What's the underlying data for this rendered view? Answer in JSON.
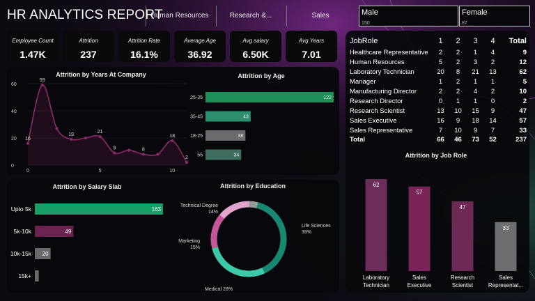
{
  "header": {
    "title": "HR ANALYTICS REPORT",
    "tabs": [
      "Human Resources",
      "Research &...",
      "Sales"
    ]
  },
  "gender": [
    {
      "label": "Male",
      "value": "150"
    },
    {
      "label": "Female",
      "value": "87"
    }
  ],
  "kpis": [
    {
      "label": "Employee Count",
      "value": "1.47K"
    },
    {
      "label": "Attrition",
      "value": "237"
    },
    {
      "label": "Attrition Rate",
      "value": "16.1%"
    },
    {
      "label": "Average Age",
      "value": "36.92"
    },
    {
      "label": "Avg salary",
      "value": "6.50K"
    },
    {
      "label": "Avg Years",
      "value": "7.01"
    }
  ],
  "colors": {
    "green": "#1f8f5a",
    "teal": "#2e8f6e",
    "gray": "#6b6b6b",
    "grayteal": "#3f6e5e",
    "plum": "#6b2450",
    "line": "#8d2a6a",
    "barGreen": "#16a068",
    "jobPlum": "#6b2d5a",
    "jobMag": "#7b2459",
    "jobPlum2": "#6e2a55",
    "jobGray": "#6f6f6f",
    "donutDark": "#17876f",
    "donutLight": "#3dc9a8",
    "donutPink": "#c4579a",
    "donutLightPink": "#e2a4cc",
    "donutGray": "#9a9a9a"
  },
  "chart_data": [
    {
      "type": "line",
      "title": "Attrition by Years At Company",
      "ylim": [
        0,
        60
      ],
      "yticks": [
        0,
        20,
        40,
        60
      ],
      "series": [
        {
          "name": "Attrition",
          "x": [
            0,
            1,
            2,
            3,
            4,
            5,
            6,
            7,
            8,
            9,
            10,
            11
          ],
          "values": [
            16,
            59,
            27,
            19,
            20,
            21,
            9,
            11,
            8,
            8,
            18,
            2
          ]
        }
      ],
      "labels": [
        {
          "x": 0,
          "text": "16"
        },
        {
          "x": 1,
          "text": "59"
        },
        {
          "x": 3,
          "text": "19"
        },
        {
          "x": 5,
          "text": "21"
        },
        {
          "x": 6,
          "text": "9"
        },
        {
          "x": 8,
          "text": "8"
        },
        {
          "x": 10,
          "text": "18"
        },
        {
          "x": 11,
          "text": "2"
        }
      ],
      "xticks": [
        "0",
        "5",
        "10"
      ]
    },
    {
      "type": "bar",
      "title": "Attrition by Age",
      "categories": [
        "25-35",
        "35-45",
        "18-25",
        "55"
      ],
      "values": [
        122,
        43,
        38,
        34
      ],
      "colors": [
        "#1f8f5a",
        "#2e8f6e",
        "#6b6b6b",
        "#3f6e5e"
      ]
    },
    {
      "type": "bar",
      "title": "Attrition by Salary Slab",
      "categories": [
        "Upto 5k",
        "5k-10k",
        "10k-15k",
        "15k+"
      ],
      "values": [
        163,
        49,
        20,
        5
      ],
      "display": [
        "163",
        "49",
        "20",
        ""
      ],
      "colors": [
        "#16a068",
        "#6b2450",
        "#6b6b6b",
        "#6b6b6b"
      ]
    },
    {
      "type": "pie",
      "title": "Attrition by Education",
      "categories": [
        "Life Sciences",
        "Medical",
        "Marketing",
        "Technical Degree",
        "Other"
      ],
      "values": [
        39,
        28,
        15,
        14,
        4
      ],
      "labels": [
        "Life Sciences\n39%",
        "Medical 28%",
        "Marketing\n15%",
        "Technical Degree\n14%",
        ""
      ],
      "colors": [
        "#17876f",
        "#3dc9a8",
        "#c4579a",
        "#e2a4cc",
        "#9a9a9a"
      ]
    },
    {
      "type": "bar",
      "title": "Attrition by Job Role",
      "categories": [
        "Laboratory Technician",
        "Sales Executive",
        "Research Scientist",
        "Sales Representat..."
      ],
      "categoryLines": [
        [
          "Laboratory",
          "Technician"
        ],
        [
          "Sales",
          "Executive"
        ],
        [
          "Research",
          "Scientist"
        ],
        [
          "Sales",
          "Representat..."
        ]
      ],
      "values": [
        62,
        57,
        47,
        33
      ],
      "ylim": [
        0,
        70
      ],
      "colors": [
        "#6b2d5a",
        "#7b2459",
        "#6e2a55",
        "#6f6f6f"
      ]
    },
    {
      "type": "table",
      "columns": [
        "JobRole",
        "1",
        "2",
        "3",
        "4",
        "Total"
      ],
      "rows": [
        [
          "Healthcare Representative",
          "2",
          "2",
          "1",
          "4",
          "9"
        ],
        [
          "Human Resources",
          "5",
          "2",
          "3",
          "2",
          "12"
        ],
        [
          "Laboratory Technician",
          "20",
          "8",
          "21",
          "13",
          "62"
        ],
        [
          "Manager",
          "1",
          "2",
          "1",
          "1",
          "5"
        ],
        [
          "Manufacturing Director",
          "2",
          "2",
          "4",
          "2",
          "10"
        ],
        [
          "Research Director",
          "0",
          "1",
          "1",
          "0",
          "2"
        ],
        [
          "Research Scientist",
          "13",
          "10",
          "15",
          "9",
          "47"
        ],
        [
          "Sales Executive",
          "16",
          "9",
          "18",
          "14",
          "57"
        ],
        [
          "Sales Representative",
          "7",
          "10",
          "9",
          "7",
          "33"
        ],
        [
          "Total",
          "66",
          "46",
          "73",
          "52",
          "237"
        ]
      ]
    }
  ]
}
